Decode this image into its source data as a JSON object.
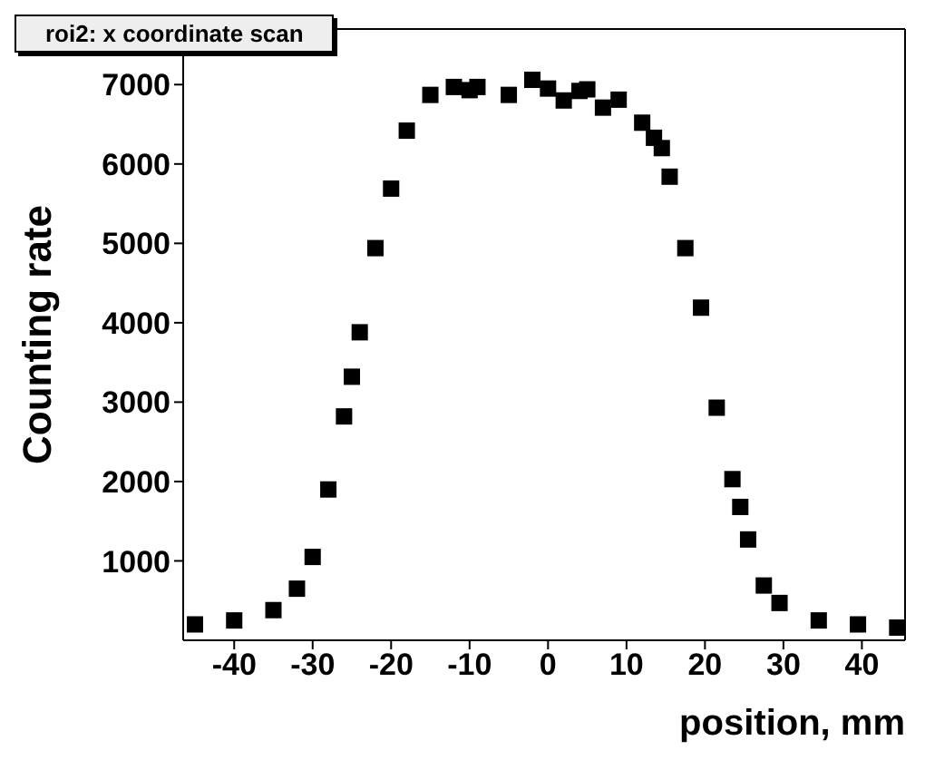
{
  "chart_data": {
    "type": "scatter",
    "title": "roi2: x coordinate scan",
    "xlabel": "position, mm",
    "ylabel": "Counting rate",
    "x": [
      -45,
      -40,
      -35,
      -32,
      -30,
      -28,
      -26,
      -25,
      -24,
      -22,
      -20,
      -18,
      -15,
      -12,
      -10,
      -9,
      -5,
      -2,
      0,
      2,
      4,
      5,
      7,
      9,
      12,
      13.5,
      14.5,
      15.5,
      17.5,
      19.5,
      21.5,
      23.5,
      24.5,
      25.5,
      27.5,
      29.5,
      34.5,
      39.5,
      44.5
    ],
    "series": [
      {
        "color": "#000000",
        "values": [
          200,
          250,
          380,
          650,
          1050,
          1900,
          2820,
          3320,
          3880,
          4940,
          5690,
          6420,
          6870,
          6970,
          6930,
          6970,
          6870,
          7060,
          6950,
          6800,
          6920,
          6940,
          6710,
          6810,
          6520,
          6330,
          6200,
          5840,
          4940,
          4190,
          2930,
          2030,
          1680,
          1270,
          690,
          470,
          250,
          200,
          160
        ]
      }
    ],
    "xlim": [
      -46.5,
      45.5
    ],
    "xticks": [
      -40,
      -30,
      -20,
      -10,
      0,
      10,
      20,
      30,
      40
    ],
    "ylim": [
      0,
      7700
    ],
    "yticks": [
      1000,
      2000,
      3000,
      4000,
      5000,
      6000,
      7000
    ],
    "marker": "square",
    "legend": false
  }
}
